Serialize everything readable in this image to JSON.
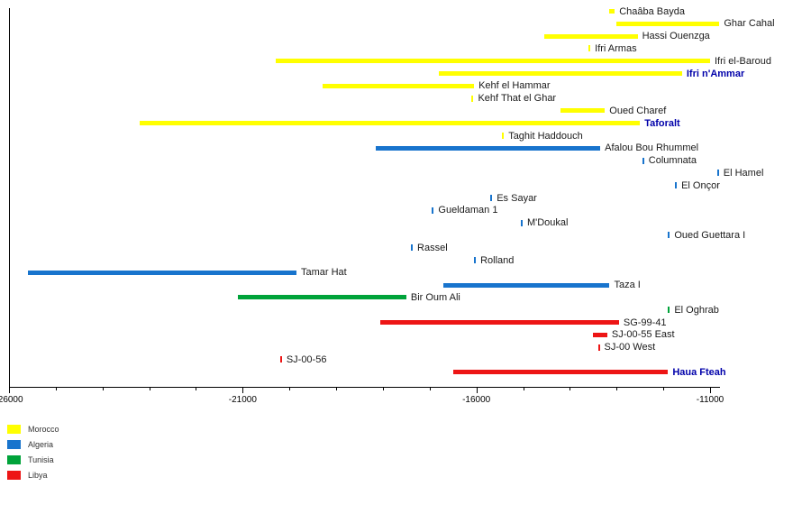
{
  "chart_data": {
    "type": "bar",
    "orientation": "horizontal",
    "title": "",
    "xlabel": "",
    "ylabel": "",
    "grid": false,
    "x_axis": {
      "min": -26000,
      "max": -10800,
      "minor_tick_interval": 1000,
      "major_tick_interval": 5000,
      "major_ticks": [
        -26000,
        -21000,
        -16000,
        -11000
      ],
      "tick_labels": [
        "-26000",
        "-21000",
        "-16000",
        "-11000"
      ]
    },
    "legend": {
      "position": "bottom-left",
      "items": [
        {
          "label": "Morocco",
          "color": "#FFFF00"
        },
        {
          "label": "Algeria",
          "color": "#1874CD"
        },
        {
          "label": "Tunisia",
          "color": "#00A33A"
        },
        {
          "label": "Libya",
          "color": "#ED1515"
        }
      ]
    },
    "highlight_label_color": "#0000AA",
    "sites": [
      {
        "name": "Chaâba Bayda",
        "country": "Morocco",
        "start": -13150,
        "end": -13040
      },
      {
        "name": "Ghar Cahal",
        "country": "Morocco",
        "start": -13000,
        "end": -10800
      },
      {
        "name": "Hassi Ouenzga",
        "country": "Morocco",
        "start": -14550,
        "end": -12550
      },
      {
        "name": "Ifri Armas",
        "country": "Morocco",
        "start": -13600,
        "end": -13600
      },
      {
        "name": "Ifri el-Baroud",
        "country": "Morocco",
        "start": -20300,
        "end": -11000
      },
      {
        "name": "Ifri n'Ammar",
        "country": "Morocco",
        "start": -16800,
        "end": -11600,
        "highlight": true
      },
      {
        "name": "Kehf el Hammar",
        "country": "Morocco",
        "start": -19300,
        "end": -16050
      },
      {
        "name": "Kehf That el Ghar",
        "country": "Morocco",
        "start": -16100,
        "end": -16100
      },
      {
        "name": "Oued Charef",
        "country": "Morocco",
        "start": -14200,
        "end": -13250
      },
      {
        "name": "Taforalt",
        "country": "Morocco",
        "start": -23200,
        "end": -12500,
        "highlight": true
      },
      {
        "name": "Taghit Haddouch",
        "country": "Morocco",
        "start": -15450,
        "end": -15450
      },
      {
        "name": "Afalou Bou Rhummel",
        "country": "Algeria",
        "start": -18150,
        "end": -13350
      },
      {
        "name": "Columnata",
        "country": "Algeria",
        "start": -12450,
        "end": -12450
      },
      {
        "name": "El Hamel",
        "country": "Algeria",
        "start": -10850,
        "end": -10850
      },
      {
        "name": "El Onçor",
        "country": "Algeria",
        "start": -11750,
        "end": -11750
      },
      {
        "name": "Es Sayar",
        "country": "Algeria",
        "start": -15700,
        "end": -15700
      },
      {
        "name": "Gueldaman 1",
        "country": "Algeria",
        "start": -16950,
        "end": -16950
      },
      {
        "name": "M'Doukal",
        "country": "Algeria",
        "start": -15050,
        "end": -15050
      },
      {
        "name": "Oued Guettara I",
        "country": "Algeria",
        "start": -11900,
        "end": -11900
      },
      {
        "name": "Rassel",
        "country": "Algeria",
        "start": -17400,
        "end": -17400
      },
      {
        "name": "Rolland",
        "country": "Algeria",
        "start": -16050,
        "end": -16050
      },
      {
        "name": "Tamar Hat",
        "country": "Algeria",
        "start": -25600,
        "end": -19850
      },
      {
        "name": "Taza I",
        "country": "Algeria",
        "start": -16700,
        "end": -13150
      },
      {
        "name": "Bir Oum Ali",
        "country": "Tunisia",
        "start": -21100,
        "end": -17500
      },
      {
        "name": "El Oghrab",
        "country": "Tunisia",
        "start": -11900,
        "end": -11900
      },
      {
        "name": "SG-99-41",
        "country": "Libya",
        "start": -18050,
        "end": -12950
      },
      {
        "name": "SJ-00-55 East",
        "country": "Libya",
        "start": -13500,
        "end": -13200
      },
      {
        "name": "SJ-00 West",
        "country": "Libya",
        "start": -13400,
        "end": -13400
      },
      {
        "name": "SJ-00-56",
        "country": "Libya",
        "start": -20200,
        "end": -20200
      },
      {
        "name": "Haua Fteah",
        "country": "Libya",
        "start": -16500,
        "end": -11900,
        "highlight": true
      }
    ]
  }
}
